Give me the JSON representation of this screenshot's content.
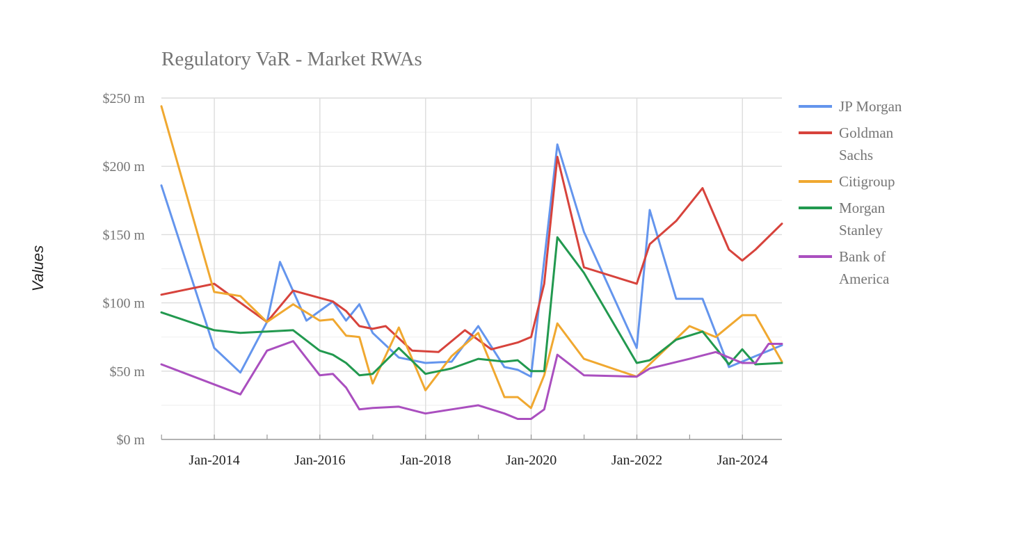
{
  "chart_data": {
    "type": "line",
    "title": "Regulatory VaR - Market RWAs",
    "xlabel": "",
    "ylabel": "Values",
    "ylim": [
      0,
      250
    ],
    "yticks": [
      0,
      50,
      100,
      150,
      200,
      250
    ],
    "ytick_labels": [
      "$0 m",
      "$50 m",
      "$100 m",
      "$150 m",
      "$200 m",
      "$250 m"
    ],
    "xlim": [
      "2012-12-31",
      "2024-09-30"
    ],
    "xticks": [
      "2014-01-01",
      "2016-01-01",
      "2018-01-01",
      "2020-01-01",
      "2022-01-01",
      "2024-01-01"
    ],
    "xtick_labels": [
      "Jan-2014",
      "Jan-2016",
      "Jan-2018",
      "Jan-2020",
      "Jan-2022",
      "Jan-2024"
    ],
    "grid": true,
    "legend_position": "right",
    "series": [
      {
        "name": "JP Morgan",
        "color": "#6495ed",
        "points": [
          [
            "2012-12-31",
            186
          ],
          [
            "2013-12-31",
            67
          ],
          [
            "2014-06-30",
            49
          ],
          [
            "2014-12-31",
            86
          ],
          [
            "2015-03-31",
            130
          ],
          [
            "2015-09-30",
            87
          ],
          [
            "2016-03-31",
            101
          ],
          [
            "2016-06-30",
            87
          ],
          [
            "2016-09-30",
            99
          ],
          [
            "2016-12-31",
            78
          ],
          [
            "2017-06-30",
            60
          ],
          [
            "2017-12-31",
            56
          ],
          [
            "2018-06-30",
            57
          ],
          [
            "2018-12-31",
            83
          ],
          [
            "2019-06-30",
            53
          ],
          [
            "2019-09-30",
            51
          ],
          [
            "2019-12-31",
            46
          ],
          [
            "2020-06-30",
            216
          ],
          [
            "2020-12-31",
            152
          ],
          [
            "2021-12-31",
            67
          ],
          [
            "2022-03-31",
            168
          ],
          [
            "2022-09-30",
            103
          ],
          [
            "2023-03-31",
            103
          ],
          [
            "2023-09-30",
            53
          ],
          [
            "2024-09-30",
            69
          ]
        ]
      },
      {
        "name": "Goldman Sachs",
        "color": "#d7433c",
        "points": [
          [
            "2012-12-31",
            106
          ],
          [
            "2013-12-31",
            114
          ],
          [
            "2014-12-31",
            86
          ],
          [
            "2015-06-30",
            109
          ],
          [
            "2016-03-31",
            101
          ],
          [
            "2016-06-30",
            94
          ],
          [
            "2016-09-30",
            83
          ],
          [
            "2016-12-31",
            81
          ],
          [
            "2017-03-31",
            83
          ],
          [
            "2017-09-30",
            65
          ],
          [
            "2018-03-31",
            64
          ],
          [
            "2018-09-30",
            80
          ],
          [
            "2019-03-31",
            66
          ],
          [
            "2019-09-30",
            71
          ],
          [
            "2020-01-01",
            75
          ],
          [
            "2020-03-31",
            114
          ],
          [
            "2020-06-30",
            207
          ],
          [
            "2020-12-31",
            126
          ],
          [
            "2021-12-31",
            114
          ],
          [
            "2022-03-31",
            143
          ],
          [
            "2022-09-30",
            160
          ],
          [
            "2023-03-31",
            184
          ],
          [
            "2023-09-30",
            139
          ],
          [
            "2023-12-31",
            131
          ],
          [
            "2024-03-31",
            139
          ],
          [
            "2024-09-30",
            158
          ]
        ]
      },
      {
        "name": "Citigroup",
        "color": "#f0a830",
        "points": [
          [
            "2012-12-31",
            244
          ],
          [
            "2013-12-31",
            108
          ],
          [
            "2014-06-30",
            105
          ],
          [
            "2014-12-31",
            86
          ],
          [
            "2015-06-30",
            99
          ],
          [
            "2015-12-31",
            87
          ],
          [
            "2016-03-31",
            88
          ],
          [
            "2016-06-30",
            76
          ],
          [
            "2016-09-30",
            75
          ],
          [
            "2016-12-31",
            41
          ],
          [
            "2017-06-30",
            82
          ],
          [
            "2017-12-31",
            36
          ],
          [
            "2018-06-30",
            61
          ],
          [
            "2018-12-31",
            78
          ],
          [
            "2019-06-30",
            31
          ],
          [
            "2019-09-30",
            31
          ],
          [
            "2019-12-31",
            23
          ],
          [
            "2020-03-31",
            47
          ],
          [
            "2020-06-30",
            85
          ],
          [
            "2020-12-31",
            59
          ],
          [
            "2021-12-31",
            46
          ],
          [
            "2022-12-31",
            83
          ],
          [
            "2023-06-30",
            75
          ],
          [
            "2023-12-31",
            91
          ],
          [
            "2024-03-31",
            91
          ],
          [
            "2024-09-30",
            57
          ]
        ]
      },
      {
        "name": "Morgan Stanley",
        "color": "#22994f",
        "points": [
          [
            "2012-12-31",
            93
          ],
          [
            "2013-12-31",
            80
          ],
          [
            "2014-06-30",
            78
          ],
          [
            "2015-06-30",
            80
          ],
          [
            "2015-12-31",
            65
          ],
          [
            "2016-03-31",
            62
          ],
          [
            "2016-06-30",
            56
          ],
          [
            "2016-09-30",
            47
          ],
          [
            "2016-12-31",
            48
          ],
          [
            "2017-06-30",
            67
          ],
          [
            "2017-12-31",
            48
          ],
          [
            "2018-06-30",
            52
          ],
          [
            "2018-12-31",
            59
          ],
          [
            "2019-06-30",
            57
          ],
          [
            "2019-09-30",
            58
          ],
          [
            "2019-12-31",
            50
          ],
          [
            "2020-03-31",
            50
          ],
          [
            "2020-06-30",
            148
          ],
          [
            "2020-12-31",
            122
          ],
          [
            "2021-12-31",
            56
          ],
          [
            "2022-03-31",
            58
          ],
          [
            "2022-09-30",
            73
          ],
          [
            "2023-03-31",
            79
          ],
          [
            "2023-09-30",
            55
          ],
          [
            "2023-12-31",
            66
          ],
          [
            "2024-03-31",
            55
          ],
          [
            "2024-09-30",
            56
          ]
        ]
      },
      {
        "name": "Bank of America",
        "color": "#aa4fbf",
        "points": [
          [
            "2012-12-31",
            55
          ],
          [
            "2014-06-30",
            33
          ],
          [
            "2014-12-31",
            65
          ],
          [
            "2015-06-30",
            72
          ],
          [
            "2015-12-31",
            47
          ],
          [
            "2016-03-31",
            48
          ],
          [
            "2016-06-30",
            38
          ],
          [
            "2016-09-30",
            22
          ],
          [
            "2016-12-31",
            23
          ],
          [
            "2017-06-30",
            24
          ],
          [
            "2017-12-31",
            19
          ],
          [
            "2018-06-30",
            22
          ],
          [
            "2018-12-31",
            25
          ],
          [
            "2019-06-30",
            19
          ],
          [
            "2019-09-30",
            15
          ],
          [
            "2019-12-31",
            15
          ],
          [
            "2020-03-31",
            22
          ],
          [
            "2020-06-30",
            62
          ],
          [
            "2020-12-31",
            47
          ],
          [
            "2021-12-31",
            46
          ],
          [
            "2022-03-31",
            52
          ],
          [
            "2022-12-31",
            59
          ],
          [
            "2023-06-30",
            64
          ],
          [
            "2023-12-31",
            56
          ],
          [
            "2024-03-31",
            56
          ],
          [
            "2024-06-30",
            70
          ],
          [
            "2024-09-30",
            70
          ]
        ]
      }
    ]
  }
}
